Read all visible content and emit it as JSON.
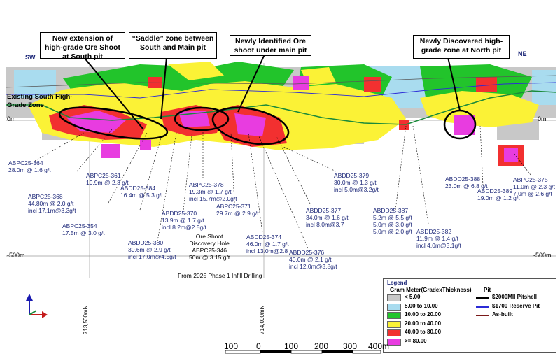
{
  "callouts": {
    "south_ext": "New extension of high-grade Ore Shoot at South pit",
    "saddle": "“Saddle” zone between South and Main pit",
    "main_shoot": "Newly Identified Ore shoot under main pit",
    "north_zone": "Newly Discovered high-grade zone at North pit"
  },
  "orientation": {
    "sw": "SW",
    "ne": "NE"
  },
  "zone_label": "Existing South High-Grade Zone",
  "elevations": {
    "zero_left": "0m",
    "zero_right": "0m",
    "minus500_left": "-500m",
    "minus500_right": "-500m"
  },
  "drill_holes": [
    {
      "id": "ABPC25-364",
      "lines": [
        "ABPC25-364",
        "28.0m @ 1.6 g/t"
      ]
    },
    {
      "id": "ABPC25-368",
      "lines": [
        "ABPC25-368",
        "44.80m @ 2.0 g/t",
        "incl 17.1m@3.3g/t"
      ]
    },
    {
      "id": "ABPC25-361",
      "lines": [
        "ABPC25-361",
        "19.9m @ 2.3 g/t"
      ]
    },
    {
      "id": "ABPC25-354",
      "lines": [
        "ABPC25-354",
        "17.5m @ 3.0 g/t"
      ]
    },
    {
      "id": "ABDD25-384",
      "lines": [
        "ABDD25-384",
        "16.4m @ 5.3 g/t"
      ]
    },
    {
      "id": "ABDD25-380",
      "lines": [
        "ABDD25-380",
        "30.6m @ 2.9 g/t",
        "incl 17.0m@4.5g/t"
      ]
    },
    {
      "id": "ABDD25-370",
      "lines": [
        "ABDD25-370",
        "13.9m @ 1.7 g/t",
        "incl 8.2m@2.5g/t"
      ]
    },
    {
      "id": "ABPC25-378",
      "lines": [
        "ABPC25-378",
        "19.3m @ 1.7 g/t",
        "incl 15.7m@2.0g/t"
      ]
    },
    {
      "id": "ABPC25-371",
      "lines": [
        "ABPC25-371",
        "29.7m @ 2.9 g/t"
      ]
    },
    {
      "id": "ABDD25-374",
      "lines": [
        "ABDD25-374",
        "46.0m @ 1.7 g/t",
        "incl 13.0m@2.8"
      ]
    },
    {
      "id": "ABDD25-376",
      "lines": [
        "ABDD25-376",
        "40.0m @ 2.1 g/t",
        "incl 12.0m@3.8g/t"
      ]
    },
    {
      "id": "ABDD25-377",
      "lines": [
        "ABDD25-377",
        "34.0m @ 1.6 g/t",
        "incl 8.0m@3.7"
      ]
    },
    {
      "id": "ABDD25-379",
      "lines": [
        "ABDD25-379",
        "30.0m @ 1.3 g/t",
        "incl 5.0m@3.2g/t"
      ]
    },
    {
      "id": "ABDD25-387",
      "lines": [
        "ABDD25-387",
        "5.2m @ 5.5 g/t",
        "5.0m @ 3.0 g/t",
        "5.0m @ 2.0 g/t"
      ]
    },
    {
      "id": "ABDD25-382",
      "lines": [
        "ABDD25-382",
        "11.9m @ 1.4 g/t",
        "incl 4.0m@3.1g/t"
      ]
    },
    {
      "id": "ABDD25-388",
      "lines": [
        "ABDD25-388",
        "23.0m @ 6.8 g/t"
      ]
    },
    {
      "id": "ABDD25-389",
      "lines": [
        "ABDD25-389",
        "19.0m @ 1.2 g/t"
      ]
    },
    {
      "id": "ABPC25-375",
      "lines": [
        "ABPC25-375",
        "11.0m @ 2.3 g/t",
        "7.0m @ 2.6 g/t"
      ]
    }
  ],
  "discovery": [
    "Ore Shoot",
    "Discovery Hole",
    "ABPC25-346",
    "50m @ 3.15 g/t"
  ],
  "program": "From 2025 Phase 1 Infill Drilling",
  "legend": {
    "title": "Legend",
    "subtitle": "Gram Meter(GradexThickness)",
    "pit_title": "Pit",
    "grades": [
      {
        "label": "< 5.00",
        "color": "#c8c8c8"
      },
      {
        "label": "5.00 to 10.00",
        "color": "#a9dcef"
      },
      {
        "label": "10.00 to 20.00",
        "color": "#22c42b"
      },
      {
        "label": "20.00 to 40.00",
        "color": "#fbf236"
      },
      {
        "label": "40.00 to 80.00",
        "color": "#f23030"
      },
      {
        "label": ">= 80.00",
        "color": "#e83ce0"
      }
    ],
    "pits": [
      {
        "label": "$2000MII Pitshell",
        "color": "#000000"
      },
      {
        "label": "$1700 Reserve Pit",
        "color": "#2b2bd6"
      },
      {
        "label": "As-built",
        "color": "#7a1a1a"
      }
    ]
  },
  "coords": {
    "left": "713,500mN",
    "mid": "714,000mN"
  },
  "scale": {
    "ticks": [
      "100",
      "0",
      "100",
      "200",
      "300",
      "400m"
    ]
  }
}
